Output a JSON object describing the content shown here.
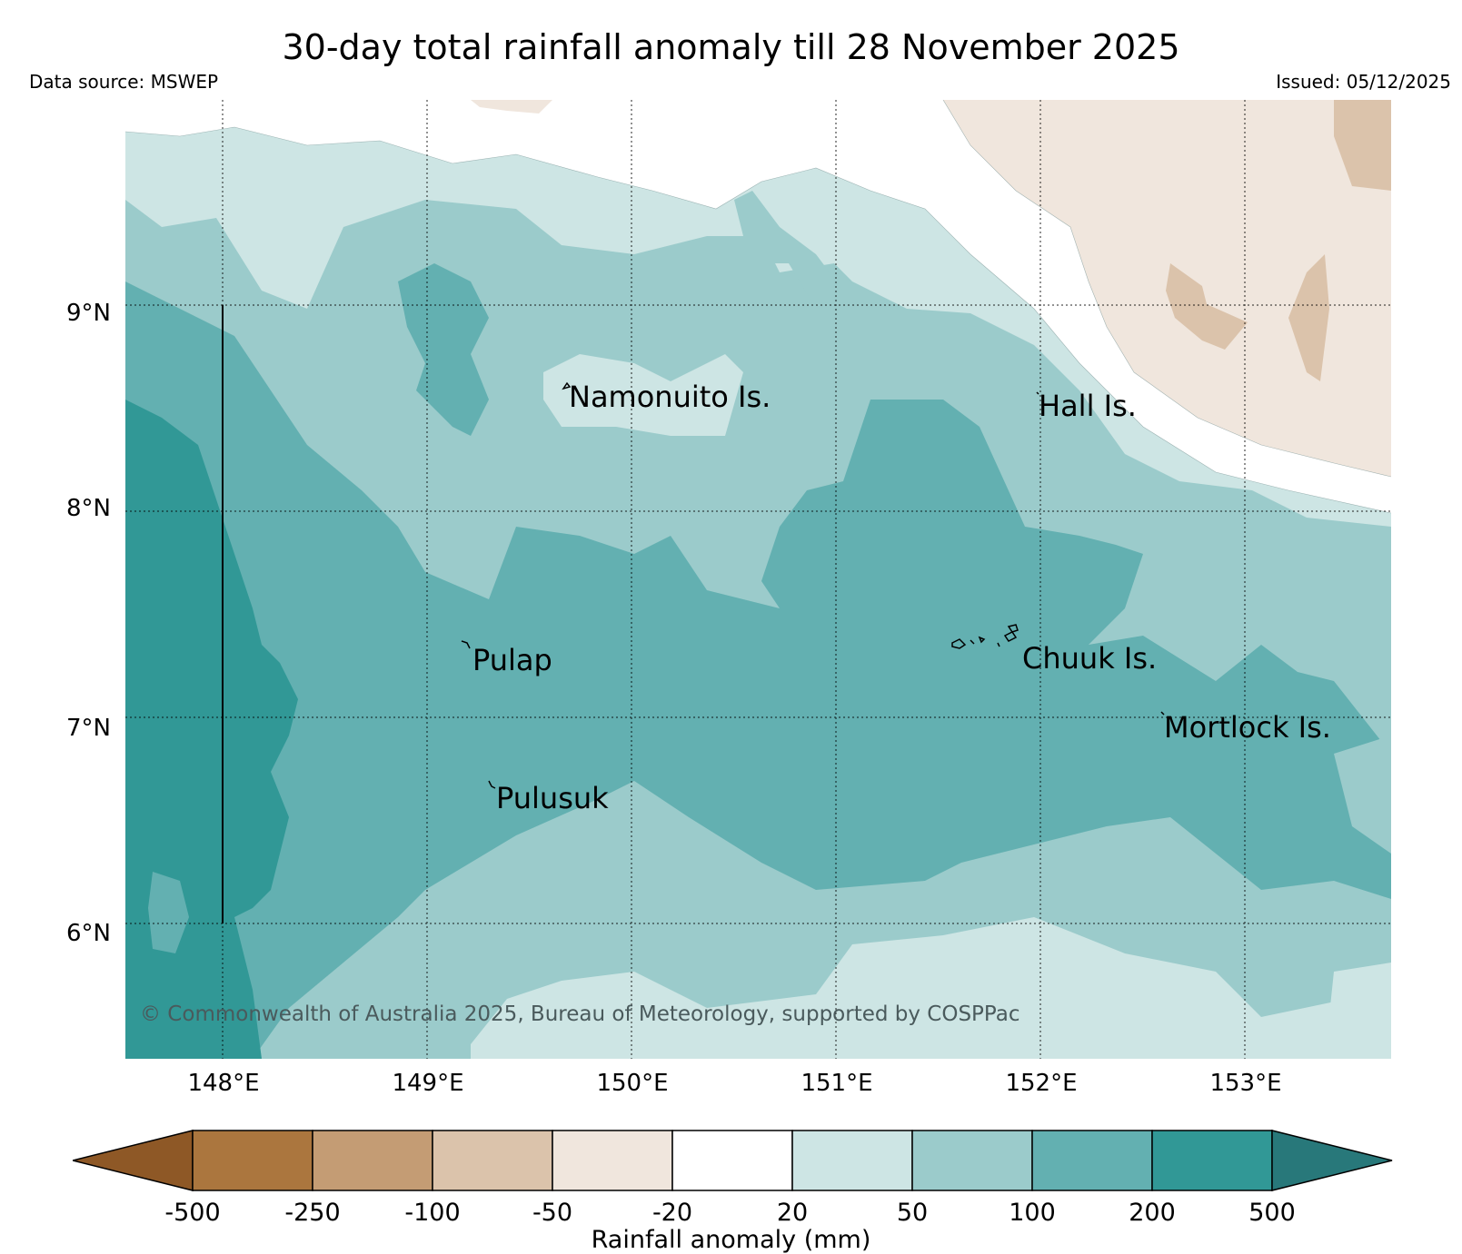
{
  "header": {
    "title": "30-day total rainfall anomaly till 28 November 2025",
    "source": "Data source: MSWEP",
    "issued": "Issued: 05/12/2025"
  },
  "axes": {
    "lat_labels": [
      "9°N",
      "8°N",
      "7°N",
      "6°N"
    ],
    "lon_labels": [
      "148°E",
      "149°E",
      "150°E",
      "151°E",
      "152°E",
      "153°E"
    ]
  },
  "places": {
    "namonuito": "Namonuito Is.",
    "hall": "Hall Is.",
    "pulap": "Pulap",
    "chuuk": "Chuuk Is.",
    "mortlock": "Mortlock Is.",
    "pulusuk": "Pulusuk"
  },
  "copyright": "© Commonwealth of Australia 2025, Bureau of Meteorology, supported by COSPPac",
  "colorbar": {
    "title": "Rainfall anomaly (mm)",
    "ticks": [
      "-500",
      "-250",
      "-100",
      "-50",
      "-20",
      "20",
      "50",
      "100",
      "200",
      "500"
    ],
    "colors": {
      "lt_-500": "#8e5826",
      "-500_-250": "#ab763e",
      "-250_-100": "#c49c74",
      "-100_-50": "#dbc3ab",
      "-50_-20": "#f0e6dd",
      "-20_20": "#ffffff",
      "20_50": "#cde5e4",
      "50_100": "#9bcbcb",
      "100_200": "#63b0b1",
      "200_500": "#319896",
      "gt_500": "#28787a"
    }
  }
}
